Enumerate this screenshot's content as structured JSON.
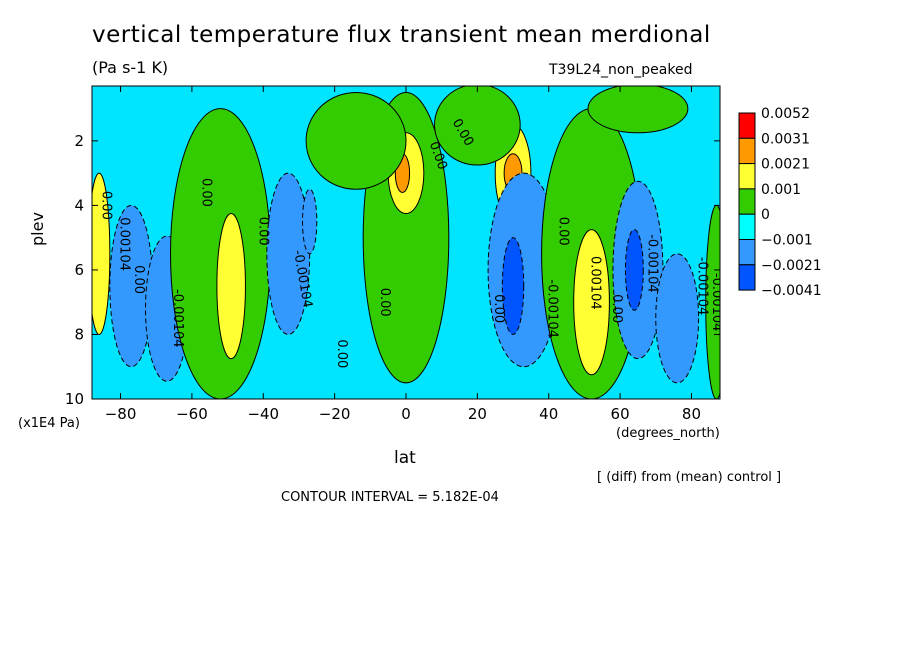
{
  "chart_data": {
    "type": "heatmap",
    "title": "vertical temperature flux transient mean merdional",
    "units": "(Pa s-1 K)",
    "run_name": "T39L24_non_peaked",
    "xlabel": "lat",
    "x_units": "(degrees_north)",
    "ylabel": "plev",
    "y_units": "(x1E4 Pa)",
    "x_ticks": [
      -80,
      -60,
      -40,
      -20,
      0,
      20,
      40,
      60,
      80
    ],
    "y_ticks": [
      2,
      4,
      6,
      8,
      10
    ],
    "xlim": [
      -88,
      88
    ],
    "ylim": [
      10,
      0.3
    ],
    "legend": {
      "placement": "right",
      "levels": [
        "0.0052",
        "0.0031",
        "0.0021",
        "0.001",
        "0",
        "-0.001",
        "-0.0021",
        "-0.0041"
      ],
      "colors": [
        "#ff0000",
        "#ff9900",
        "#ffff33",
        "#33cc00",
        "#00ffff",
        "#3399ff",
        "#0055ff"
      ]
    },
    "background_color": "#00e5ff",
    "features": [
      {
        "lat": -87,
        "plev": 4.8,
        "color": "#ff0000",
        "w": 2,
        "h": 2.4
      },
      {
        "lat": -86,
        "plev": 5.5,
        "color": "#ffff33",
        "w": 3,
        "h": 5
      },
      {
        "lat": -77,
        "plev": 6.5,
        "color": "#3399ff",
        "w": 6,
        "h": 5
      },
      {
        "lat": -67,
        "plev": 7.2,
        "color": "#3399ff",
        "w": 6,
        "h": 4.5
      },
      {
        "lat": -52,
        "plev": 5.5,
        "color": "#33cc00",
        "w": 14,
        "h": 9
      },
      {
        "lat": -49,
        "plev": 6.5,
        "color": "#ffff33",
        "w": 4,
        "h": 4.5
      },
      {
        "lat": -33,
        "plev": 5.5,
        "color": "#3399ff",
        "w": 6,
        "h": 5
      },
      {
        "lat": -27,
        "plev": 4.5,
        "color": "#3399ff",
        "w": 2,
        "h": 2
      },
      {
        "lat": 0,
        "plev": 5,
        "color": "#33cc00",
        "w": 12,
        "h": 9
      },
      {
        "lat": 0,
        "plev": 3,
        "color": "#ffff33",
        "w": 5,
        "h": 2.5
      },
      {
        "lat": -1,
        "plev": 3,
        "color": "#ff9900",
        "w": 2,
        "h": 1.2
      },
      {
        "lat": 30,
        "plev": 3,
        "color": "#ffff33",
        "w": 5,
        "h": 3
      },
      {
        "lat": 30,
        "plev": 3,
        "color": "#ff9900",
        "w": 2.5,
        "h": 1.2
      },
      {
        "lat": 33,
        "plev": 6,
        "color": "#3399ff",
        "w": 10,
        "h": 6
      },
      {
        "lat": 30,
        "plev": 6.5,
        "color": "#0055ff",
        "w": 3,
        "h": 3
      },
      {
        "lat": 52,
        "plev": 5.5,
        "color": "#33cc00",
        "w": 14,
        "h": 9
      },
      {
        "lat": 52,
        "plev": 7,
        "color": "#ffff33",
        "w": 5,
        "h": 4.5
      },
      {
        "lat": 65,
        "plev": 6,
        "color": "#3399ff",
        "w": 7,
        "h": 5.5
      },
      {
        "lat": 64,
        "plev": 6,
        "color": "#0055ff",
        "w": 2.5,
        "h": 2.5
      },
      {
        "lat": 76,
        "plev": 7.5,
        "color": "#3399ff",
        "w": 6,
        "h": 4
      },
      {
        "lat": 87,
        "plev": 7,
        "color": "#33cc00",
        "w": 3,
        "h": 6
      },
      {
        "lat": -14,
        "plev": 2,
        "color": "#33cc00",
        "w": 14,
        "h": 3
      },
      {
        "lat": 20,
        "plev": 1.5,
        "color": "#33cc00",
        "w": 12,
        "h": 2.5
      },
      {
        "lat": 65,
        "plev": 1,
        "color": "#33cc00",
        "w": 14,
        "h": 1.5
      }
    ],
    "contour_labels": [
      {
        "text": "0.00",
        "lat": 8,
        "plev": 2.5,
        "rot": 70
      },
      {
        "text": "0.00",
        "lat": 15,
        "plev": 1.8,
        "rot": 60
      },
      {
        "text": "0.00",
        "lat": -57,
        "plev": 3.6,
        "rot": 90
      },
      {
        "text": "0.00",
        "lat": -41,
        "plev": 4.8,
        "rot": 90
      },
      {
        "text": "-0.00104",
        "lat": -30,
        "plev": 6.3,
        "rot": 80
      },
      {
        "text": "0.00",
        "lat": -19,
        "plev": 8.6,
        "rot": 90
      },
      {
        "text": "0.00",
        "lat": -7,
        "plev": 7,
        "rot": 90
      },
      {
        "text": "0.00",
        "lat": 25,
        "plev": 7.2,
        "rot": 90
      },
      {
        "text": "-0.00104",
        "lat": 40,
        "plev": 7.2,
        "rot": 90
      },
      {
        "text": "0.00",
        "lat": 43,
        "plev": 4.8,
        "rot": 90
      },
      {
        "text": "0.00104",
        "lat": 52,
        "plev": 6.4,
        "rot": 90
      },
      {
        "text": "0.00",
        "lat": 58,
        "plev": 7.2,
        "rot": 90
      },
      {
        "text": "-0.00104",
        "lat": 68,
        "plev": 5.8,
        "rot": 90
      },
      {
        "text": "-0.00104",
        "lat": 82,
        "plev": 6.5,
        "rot": 90
      },
      {
        "text": "-0.00104",
        "lat": -65,
        "plev": 7.5,
        "rot": 90
      },
      {
        "text": "0.00104",
        "lat": -80,
        "plev": 5.2,
        "rot": 90
      },
      {
        "text": "0.00",
        "lat": -85,
        "plev": 4,
        "rot": 90
      },
      {
        "text": "0.00",
        "lat": -76,
        "plev": 6.3,
        "rot": 90
      },
      {
        "text": "-0.00104",
        "lat": 86,
        "plev": 7,
        "rot": 90
      }
    ]
  },
  "annotations": {
    "diff_note": "[ (diff) from (mean) control ]",
    "contour_interval": "CONTOUR INTERVAL = 5.182E-04"
  }
}
